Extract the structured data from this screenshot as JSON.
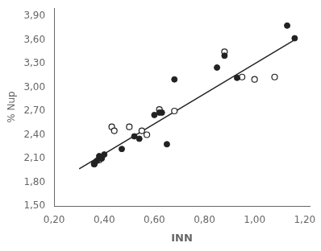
{
  "chart_data": {
    "type": "scatter",
    "xlabel": "INN",
    "ylabel": "% Nup",
    "grid": false,
    "series": [
      {
        "type": "scatter",
        "marker": "circle",
        "color": "#222222",
        "x": [
          0.36,
          0.37,
          0.38,
          0.38,
          0.39,
          0.4,
          0.47,
          0.52,
          0.54,
          0.6,
          0.62,
          0.63,
          0.65,
          0.68,
          0.85,
          0.88,
          0.93,
          1.13,
          1.16
        ],
        "values": [
          2.03,
          2.07,
          2.1,
          2.13,
          2.1,
          2.15,
          2.22,
          2.38,
          2.35,
          2.65,
          2.68,
          2.68,
          2.28,
          3.1,
          3.25,
          3.4,
          3.12,
          3.78,
          3.62
        ]
      },
      {
        "type": "scatter",
        "marker": "open_circle",
        "color": "#222222",
        "x": [
          0.36,
          0.38,
          0.43,
          0.44,
          0.5,
          0.55,
          0.57,
          0.62,
          0.68,
          0.88,
          0.95,
          1.0,
          1.08
        ],
        "values": [
          2.03,
          2.08,
          2.5,
          2.45,
          2.5,
          2.45,
          2.4,
          2.72,
          2.7,
          3.45,
          3.13,
          3.1,
          3.13
        ]
      },
      {
        "type": "line",
        "color": "#222222",
        "x": [
          0.3,
          1.17
        ],
        "values": [
          1.97,
          3.62
        ]
      }
    ],
    "xlim": [
      0.2,
      1.22
    ],
    "ylim": [
      1.5,
      4.0
    ],
    "xticks": [
      {
        "value": 0.2,
        "label": "0,20"
      },
      {
        "value": 0.4,
        "label": "0,40"
      },
      {
        "value": 0.6,
        "label": "0,60"
      },
      {
        "value": 0.8,
        "label": "0,80"
      },
      {
        "value": 1.0,
        "label": "1,00"
      },
      {
        "value": 1.2,
        "label": "1,20"
      }
    ],
    "yticks": [
      {
        "value": 1.5,
        "label": "1,50"
      },
      {
        "value": 1.8,
        "label": "1,80"
      },
      {
        "value": 2.1,
        "label": "2,10"
      },
      {
        "value": 2.4,
        "label": "2,40"
      },
      {
        "value": 2.7,
        "label": "2,70"
      },
      {
        "value": 3.0,
        "label": "3,00"
      },
      {
        "value": 3.3,
        "label": "3,30"
      },
      {
        "value": 3.6,
        "label": "3,60"
      },
      {
        "value": 3.9,
        "label": "3,90"
      }
    ]
  }
}
